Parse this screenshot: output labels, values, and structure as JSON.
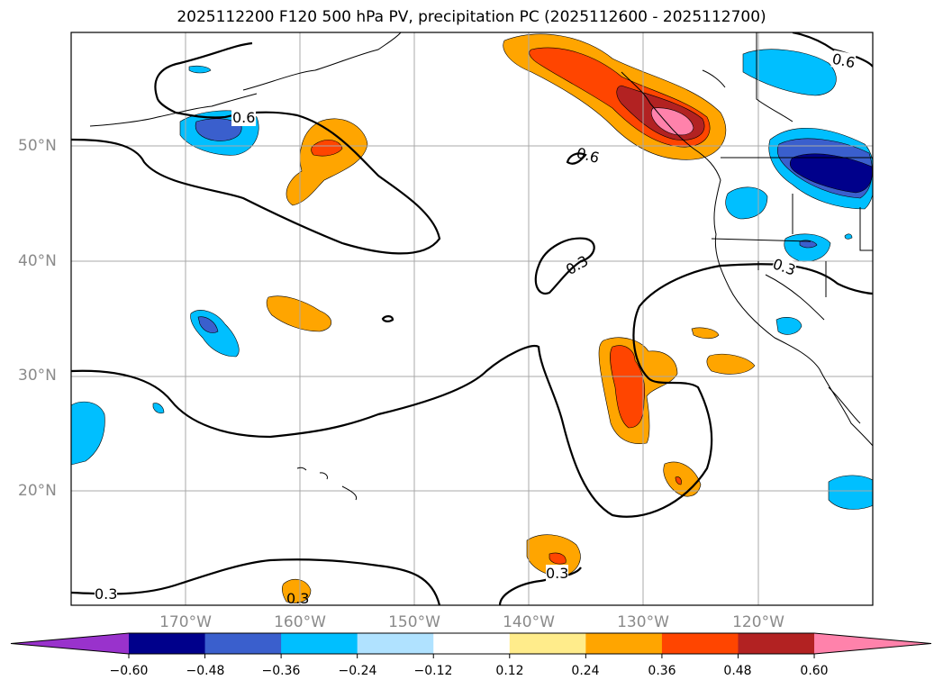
{
  "title": "2025112200 F120 500 hPa PV, precipitation PC (2025112600 - 2025112700)",
  "map": {
    "lat_labels": [
      "50°N",
      "40°N",
      "30°N",
      "20°N"
    ],
    "lon_labels": [
      "170°W",
      "160°W",
      "150°W",
      "140°W",
      "130°W",
      "120°W"
    ],
    "contour_labels": [
      "0.6",
      "0.6",
      "0.6",
      "0.3",
      "0.3",
      "0.3",
      "0.3",
      "0.3"
    ]
  },
  "colorbar": {
    "ticks": [
      "−0.60",
      "−0.48",
      "−0.36",
      "−0.24",
      "−0.12",
      "0.12",
      "0.24",
      "0.36",
      "0.48",
      "0.60"
    ],
    "colors": [
      "#9932cc",
      "#00008b",
      "#3a5fcd",
      "#00bfff",
      "#b0e2ff",
      "#ffffff",
      "#ffec8b",
      "#ffa500",
      "#ff4500",
      "#b22222",
      "#ff82ab"
    ]
  }
}
